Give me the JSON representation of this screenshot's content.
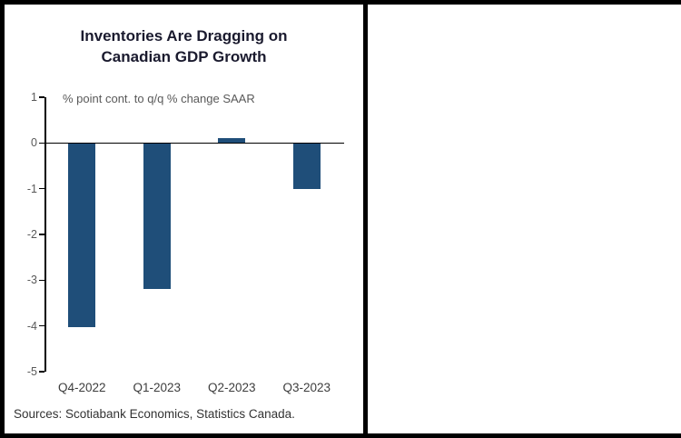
{
  "title": {
    "line1": "Inventories Are Dragging on",
    "line2": "Canadian GDP Growth"
  },
  "annotation": "% point cont. to q/q % change SAAR",
  "source": "Sources: Scotiabank Economics, Statistics Canada.",
  "colors": {
    "bar": "#1f4e79",
    "axis": "#000000",
    "title": "#1a1a2e",
    "tick_label": "#595959",
    "x_label": "#3d3d3d"
  },
  "chart_data": {
    "type": "bar",
    "categories": [
      "Q4-2022",
      "Q1-2023",
      "Q2-2023",
      "Q3-2023"
    ],
    "values": [
      -4.03,
      -3.2,
      0.1,
      -1.0
    ],
    "title": "Inventories Are Dragging on Canadian GDP Growth",
    "xlabel": "",
    "ylabel": "% point cont. to q/q % change SAAR",
    "ylim": [
      -5,
      1
    ],
    "yticks": [
      1,
      0,
      -1,
      -2,
      -3,
      -4,
      -5
    ],
    "grid": false,
    "legend": null,
    "bar_color": "#1f4e79"
  }
}
